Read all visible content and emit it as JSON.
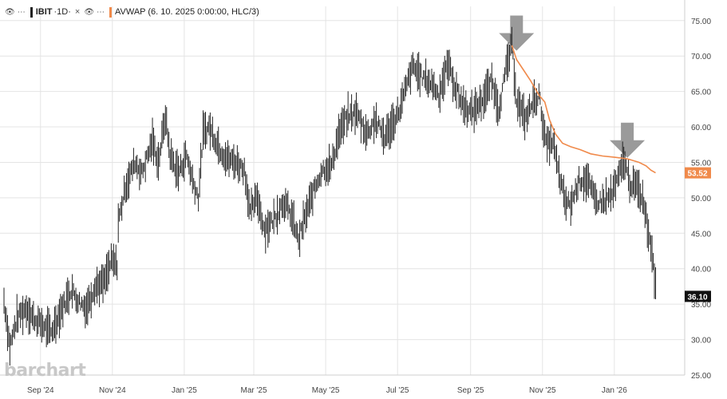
{
  "legend": {
    "symbol": "IBIT",
    "interval": "·1D·",
    "study": "AVWAP (6. 10. 2025 0:00:00, HLC/3)",
    "eye_icon": "eye-icon",
    "more_icon": "ellipsis-icon",
    "close_icon": "close-icon"
  },
  "watermark": "barchart",
  "colors": {
    "price": "#222222",
    "avwap": "#f08a4b",
    "grid": "#e4e4e4",
    "arrow": "#9a9a9a"
  },
  "chart_data": {
    "type": "line",
    "ylim": [
      25,
      77
    ],
    "y_ticks": [
      "25.00",
      "30.00",
      "35.00",
      "40.00",
      "45.00",
      "50.00",
      "55.00",
      "60.00",
      "65.00",
      "70.00",
      "75.00"
    ],
    "x_tick_labels": [
      "Sep '24",
      "Nov '24",
      "Jan '25",
      "Mar '25",
      "May '25",
      "Jul '25",
      "Sep '25",
      "Nov '25",
      "Jan '26"
    ],
    "x_tick_dates": [
      "2024-09-01",
      "2024-11-01",
      "2025-01-01",
      "2025-03-01",
      "2025-05-01",
      "2025-07-01",
      "2025-09-01",
      "2025-11-01",
      "2026-01-01"
    ],
    "x_range": [
      "2024-08-01",
      "2026-02-06"
    ],
    "price_label": "36.10",
    "avwap_label": "53.52",
    "series": [
      {
        "kind": "price",
        "points": [
          [
            "2024-08-01",
            35.5
          ],
          [
            "2024-08-06",
            29.0
          ],
          [
            "2024-08-12",
            33.0
          ],
          [
            "2024-08-20",
            34.5
          ],
          [
            "2024-08-26",
            33.0
          ],
          [
            "2024-09-03",
            32.0
          ],
          [
            "2024-09-10",
            31.0
          ],
          [
            "2024-09-18",
            34.0
          ],
          [
            "2024-09-27",
            37.0
          ],
          [
            "2024-10-03",
            35.5
          ],
          [
            "2024-10-10",
            34.5
          ],
          [
            "2024-10-17",
            37.5
          ],
          [
            "2024-10-25",
            38.0
          ],
          [
            "2024-10-31",
            41.0
          ],
          [
            "2024-11-05",
            40.5
          ],
          [
            "2024-11-06",
            46.5
          ],
          [
            "2024-11-12",
            51.5
          ],
          [
            "2024-11-20",
            55.0
          ],
          [
            "2024-11-26",
            53.5
          ],
          [
            "2024-12-05",
            58.0
          ],
          [
            "2024-12-10",
            55.0
          ],
          [
            "2024-12-16",
            61.5
          ],
          [
            "2024-12-20",
            56.0
          ],
          [
            "2024-12-27",
            53.5
          ],
          [
            "2025-01-03",
            56.0
          ],
          [
            "2025-01-08",
            52.5
          ],
          [
            "2025-01-13,",
            50.0
          ],
          [
            "2025-01-17",
            59.0
          ],
          [
            "2025-01-22",
            60.0
          ],
          [
            "2025-01-31",
            57.0
          ],
          [
            "2025-02-06",
            55.5
          ],
          [
            "2025-02-14",
            55.0
          ],
          [
            "2025-02-21",
            54.0
          ],
          [
            "2025-02-26",
            48.0
          ],
          [
            "2025-03-04",
            50.0
          ],
          [
            "2025-03-10",
            45.5
          ],
          [
            "2025-03-18",
            47.0
          ],
          [
            "2025-03-26",
            49.5
          ],
          [
            "2025-04-02",
            47.5
          ],
          [
            "2025-04-08",
            44.0
          ],
          [
            "2025-04-14",
            47.5
          ],
          [
            "2025-04-22",
            51.5
          ],
          [
            "2025-04-28",
            54.0
          ],
          [
            "2025-05-06",
            54.5
          ],
          [
            "2025-05-12",
            59.0
          ],
          [
            "2025-05-20",
            61.5
          ],
          [
            "2025-05-27",
            62.0
          ],
          [
            "2025-06-05",
            59.0
          ],
          [
            "2025-06-12",
            61.0
          ],
          [
            "2025-06-20",
            58.5
          ],
          [
            "2025-06-27",
            60.5
          ],
          [
            "2025-07-03",
            62.5
          ],
          [
            "2025-07-10",
            66.5
          ],
          [
            "2025-07-14",
            68.5
          ],
          [
            "2025-07-22",
            67.0
          ],
          [
            "2025-07-31",
            66.0
          ],
          [
            "2025-08-05",
            64.5
          ],
          [
            "2025-08-13",
            69.0
          ],
          [
            "2025-08-19",
            65.5
          ],
          [
            "2025-08-26",
            63.0
          ],
          [
            "2025-09-02",
            62.0
          ],
          [
            "2025-09-12",
            64.0
          ],
          [
            "2025-09-19",
            66.5
          ],
          [
            "2025-09-25",
            62.5
          ],
          [
            "2025-10-01",
            68.0
          ],
          [
            "2025-10-06",
            71.5
          ],
          [
            "2025-10-10",
            64.0
          ],
          [
            "2025-10-17",
            61.0
          ],
          [
            "2025-10-24",
            63.5
          ],
          [
            "2025-10-29",
            64.5
          ],
          [
            "2025-11-04",
            57.5
          ],
          [
            "2025-11-10",
            58.0
          ],
          [
            "2025-11-14",
            54.0
          ],
          [
            "2025-11-20",
            49.5
          ],
          [
            "2025-11-25",
            49.0
          ],
          [
            "2025-12-02",
            52.5
          ],
          [
            "2025-12-09",
            52.5
          ],
          [
            "2025-12-16",
            49.5
          ],
          [
            "2025-12-23",
            49.5
          ],
          [
            "2025-12-30",
            50.5
          ],
          [
            "2026-01-05",
            53.0
          ],
          [
            "2026-01-09",
            55.5
          ],
          [
            "2026-01-14",
            52.0
          ],
          [
            "2026-01-20",
            51.5
          ],
          [
            "2026-01-26",
            49.5
          ],
          [
            "2026-01-30",
            45.0
          ],
          [
            "2026-02-03",
            41.5
          ],
          [
            "2026-02-05",
            36.1
          ]
        ]
      },
      {
        "kind": "avwap",
        "points": [
          [
            "2025-10-06",
            71.5
          ],
          [
            "2025-10-10",
            69.5
          ],
          [
            "2025-10-16",
            68.0
          ],
          [
            "2025-10-22",
            66.5
          ],
          [
            "2025-10-29",
            64.5
          ],
          [
            "2025-11-03",
            63.5
          ],
          [
            "2025-11-07",
            61.0
          ],
          [
            "2025-11-12",
            59.0
          ],
          [
            "2025-11-18",
            57.7
          ],
          [
            "2025-11-25",
            57.2
          ],
          [
            "2025-12-03",
            56.8
          ],
          [
            "2025-12-12",
            56.2
          ],
          [
            "2025-12-22",
            55.9
          ],
          [
            "2026-01-02",
            55.7
          ],
          [
            "2026-01-12",
            55.5
          ],
          [
            "2026-01-22",
            55.0
          ],
          [
            "2026-01-28",
            54.5
          ],
          [
            "2026-02-01",
            53.9
          ],
          [
            "2026-02-05",
            53.52
          ]
        ]
      }
    ],
    "annotations": [
      {
        "shape": "down-arrow",
        "date": "2025-10-10",
        "value": 75.7
      },
      {
        "shape": "down-arrow",
        "date": "2026-01-12",
        "value": 60.6
      }
    ]
  }
}
